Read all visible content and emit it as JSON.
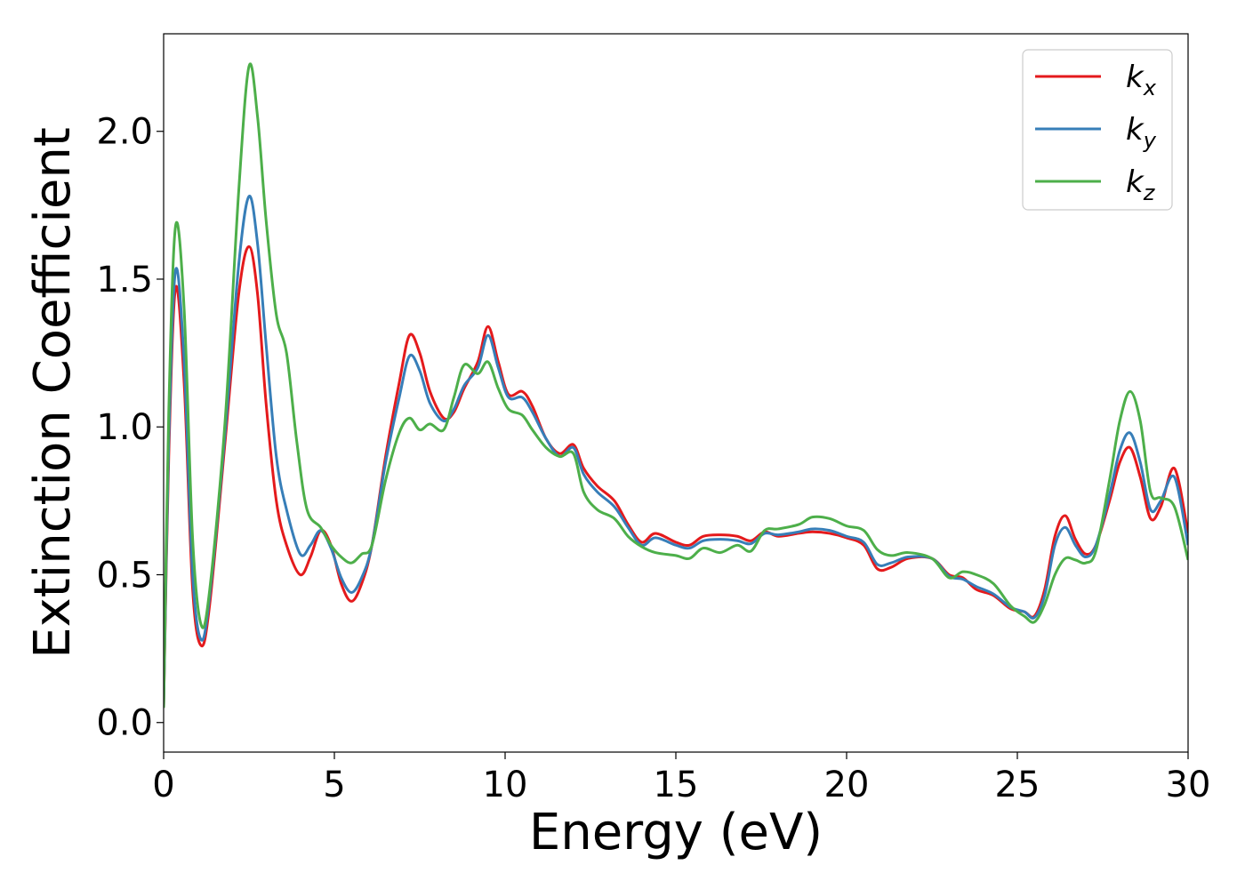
{
  "chart_data": {
    "type": "line",
    "title": "",
    "xlabel": "Energy (eV)",
    "ylabel": "Extinction Coefficient",
    "xlim": [
      0,
      30
    ],
    "ylim": [
      -0.1,
      2.33
    ],
    "x_ticks": [
      0,
      5,
      10,
      15,
      20,
      25,
      30
    ],
    "x_tick_labels": [
      "0",
      "5",
      "10",
      "15",
      "20",
      "25",
      "30"
    ],
    "y_ticks": [
      0.0,
      0.5,
      1.0,
      1.5,
      2.0
    ],
    "y_tick_labels": [
      "0.0",
      "0.5",
      "1.0",
      "1.5",
      "2.0"
    ],
    "grid": false,
    "legend_position": "top-right",
    "series": [
      {
        "name": "k_x",
        "legend_base": "k",
        "legend_sub": "x",
        "color": "#e41a1c",
        "points": [
          [
            0,
            0.05
          ],
          [
            0.15,
            0.9
          ],
          [
            0.35,
            1.47
          ],
          [
            0.6,
            1.15
          ],
          [
            0.85,
            0.45
          ],
          [
            1.1,
            0.26
          ],
          [
            1.35,
            0.4
          ],
          [
            1.8,
            0.95
          ],
          [
            2.2,
            1.45
          ],
          [
            2.5,
            1.61
          ],
          [
            2.75,
            1.45
          ],
          [
            3.0,
            1.08
          ],
          [
            3.3,
            0.75
          ],
          [
            3.6,
            0.6
          ],
          [
            4.0,
            0.5
          ],
          [
            4.3,
            0.56
          ],
          [
            4.6,
            0.65
          ],
          [
            4.9,
            0.6
          ],
          [
            5.2,
            0.47
          ],
          [
            5.5,
            0.41
          ],
          [
            5.8,
            0.47
          ],
          [
            6.1,
            0.6
          ],
          [
            6.5,
            0.9
          ],
          [
            6.9,
            1.15
          ],
          [
            7.2,
            1.31
          ],
          [
            7.5,
            1.25
          ],
          [
            7.8,
            1.12
          ],
          [
            8.2,
            1.03
          ],
          [
            8.5,
            1.05
          ],
          [
            8.8,
            1.13
          ],
          [
            9.2,
            1.22
          ],
          [
            9.5,
            1.34
          ],
          [
            9.8,
            1.22
          ],
          [
            10.1,
            1.11
          ],
          [
            10.5,
            1.12
          ],
          [
            10.8,
            1.07
          ],
          [
            11.2,
            0.96
          ],
          [
            11.6,
            0.91
          ],
          [
            12.0,
            0.94
          ],
          [
            12.3,
            0.86
          ],
          [
            12.7,
            0.8
          ],
          [
            13.2,
            0.75
          ],
          [
            13.6,
            0.67
          ],
          [
            14.0,
            0.61
          ],
          [
            14.4,
            0.64
          ],
          [
            15.0,
            0.61
          ],
          [
            15.4,
            0.6
          ],
          [
            15.8,
            0.63
          ],
          [
            16.3,
            0.635
          ],
          [
            16.8,
            0.63
          ],
          [
            17.2,
            0.615
          ],
          [
            17.6,
            0.645
          ],
          [
            18.0,
            0.63
          ],
          [
            18.6,
            0.64
          ],
          [
            19.0,
            0.645
          ],
          [
            19.5,
            0.64
          ],
          [
            20.0,
            0.625
          ],
          [
            20.5,
            0.6
          ],
          [
            20.9,
            0.52
          ],
          [
            21.3,
            0.525
          ],
          [
            21.8,
            0.555
          ],
          [
            22.5,
            0.555
          ],
          [
            23.0,
            0.5
          ],
          [
            23.4,
            0.49
          ],
          [
            23.8,
            0.45
          ],
          [
            24.3,
            0.43
          ],
          [
            24.8,
            0.385
          ],
          [
            25.2,
            0.375
          ],
          [
            25.5,
            0.36
          ],
          [
            25.8,
            0.45
          ],
          [
            26.1,
            0.63
          ],
          [
            26.4,
            0.7
          ],
          [
            26.7,
            0.62
          ],
          [
            27.0,
            0.57
          ],
          [
            27.3,
            0.6
          ],
          [
            27.7,
            0.75
          ],
          [
            28.0,
            0.88
          ],
          [
            28.3,
            0.93
          ],
          [
            28.6,
            0.83
          ],
          [
            28.9,
            0.69
          ],
          [
            29.2,
            0.73
          ],
          [
            29.6,
            0.86
          ],
          [
            30.0,
            0.64
          ]
        ]
      },
      {
        "name": "k_y",
        "legend_base": "k",
        "legend_sub": "y",
        "color": "#377eb8",
        "points": [
          [
            0,
            0.05
          ],
          [
            0.15,
            0.95
          ],
          [
            0.35,
            1.53
          ],
          [
            0.6,
            1.22
          ],
          [
            0.85,
            0.5
          ],
          [
            1.1,
            0.28
          ],
          [
            1.35,
            0.43
          ],
          [
            1.8,
            0.98
          ],
          [
            2.2,
            1.55
          ],
          [
            2.5,
            1.78
          ],
          [
            2.75,
            1.62
          ],
          [
            3.0,
            1.28
          ],
          [
            3.3,
            0.9
          ],
          [
            3.6,
            0.72
          ],
          [
            4.0,
            0.57
          ],
          [
            4.3,
            0.6
          ],
          [
            4.6,
            0.65
          ],
          [
            4.9,
            0.59
          ],
          [
            5.2,
            0.49
          ],
          [
            5.5,
            0.44
          ],
          [
            5.8,
            0.49
          ],
          [
            6.1,
            0.6
          ],
          [
            6.5,
            0.88
          ],
          [
            6.9,
            1.1
          ],
          [
            7.2,
            1.24
          ],
          [
            7.5,
            1.19
          ],
          [
            7.8,
            1.08
          ],
          [
            8.2,
            1.02
          ],
          [
            8.5,
            1.06
          ],
          [
            8.8,
            1.14
          ],
          [
            9.2,
            1.2
          ],
          [
            9.5,
            1.31
          ],
          [
            9.8,
            1.2
          ],
          [
            10.1,
            1.1
          ],
          [
            10.5,
            1.1
          ],
          [
            10.8,
            1.05
          ],
          [
            11.2,
            0.96
          ],
          [
            11.6,
            0.9
          ],
          [
            12.0,
            0.93
          ],
          [
            12.3,
            0.84
          ],
          [
            12.7,
            0.78
          ],
          [
            13.2,
            0.73
          ],
          [
            13.6,
            0.66
          ],
          [
            14.0,
            0.6
          ],
          [
            14.4,
            0.625
          ],
          [
            15.0,
            0.6
          ],
          [
            15.4,
            0.59
          ],
          [
            15.8,
            0.615
          ],
          [
            16.3,
            0.62
          ],
          [
            16.8,
            0.615
          ],
          [
            17.2,
            0.605
          ],
          [
            17.6,
            0.64
          ],
          [
            18.0,
            0.635
          ],
          [
            18.6,
            0.645
          ],
          [
            19.0,
            0.655
          ],
          [
            19.5,
            0.65
          ],
          [
            20.0,
            0.63
          ],
          [
            20.5,
            0.61
          ],
          [
            20.9,
            0.535
          ],
          [
            21.3,
            0.54
          ],
          [
            21.8,
            0.56
          ],
          [
            22.5,
            0.555
          ],
          [
            23.0,
            0.495
          ],
          [
            23.4,
            0.485
          ],
          [
            23.8,
            0.46
          ],
          [
            24.3,
            0.435
          ],
          [
            24.8,
            0.39
          ],
          [
            25.2,
            0.375
          ],
          [
            25.5,
            0.355
          ],
          [
            25.8,
            0.43
          ],
          [
            26.1,
            0.6
          ],
          [
            26.4,
            0.66
          ],
          [
            26.7,
            0.6
          ],
          [
            27.0,
            0.56
          ],
          [
            27.3,
            0.6
          ],
          [
            27.7,
            0.77
          ],
          [
            28.0,
            0.92
          ],
          [
            28.3,
            0.98
          ],
          [
            28.6,
            0.88
          ],
          [
            28.9,
            0.72
          ],
          [
            29.2,
            0.75
          ],
          [
            29.6,
            0.83
          ],
          [
            30.0,
            0.6
          ]
        ]
      },
      {
        "name": "k_z",
        "legend_base": "k",
        "legend_sub": "z",
        "color": "#4daf4a",
        "points": [
          [
            0,
            0.05
          ],
          [
            0.15,
            1.05
          ],
          [
            0.35,
            1.68
          ],
          [
            0.6,
            1.4
          ],
          [
            0.85,
            0.62
          ],
          [
            1.1,
            0.33
          ],
          [
            1.35,
            0.45
          ],
          [
            1.8,
            1.02
          ],
          [
            2.2,
            1.8
          ],
          [
            2.5,
            2.22
          ],
          [
            2.75,
            2.05
          ],
          [
            3.0,
            1.7
          ],
          [
            3.3,
            1.38
          ],
          [
            3.6,
            1.25
          ],
          [
            3.9,
            0.95
          ],
          [
            4.2,
            0.72
          ],
          [
            4.6,
            0.66
          ],
          [
            4.9,
            0.6
          ],
          [
            5.2,
            0.56
          ],
          [
            5.5,
            0.54
          ],
          [
            5.8,
            0.57
          ],
          [
            6.1,
            0.6
          ],
          [
            6.5,
            0.82
          ],
          [
            6.9,
            0.98
          ],
          [
            7.2,
            1.03
          ],
          [
            7.5,
            0.99
          ],
          [
            7.8,
            1.01
          ],
          [
            8.2,
            0.99
          ],
          [
            8.5,
            1.1
          ],
          [
            8.8,
            1.21
          ],
          [
            9.2,
            1.18
          ],
          [
            9.5,
            1.22
          ],
          [
            9.8,
            1.13
          ],
          [
            10.1,
            1.06
          ],
          [
            10.5,
            1.04
          ],
          [
            10.8,
            0.99
          ],
          [
            11.2,
            0.93
          ],
          [
            11.6,
            0.9
          ],
          [
            12.0,
            0.91
          ],
          [
            12.3,
            0.78
          ],
          [
            12.7,
            0.72
          ],
          [
            13.2,
            0.69
          ],
          [
            13.6,
            0.63
          ],
          [
            14.0,
            0.595
          ],
          [
            14.4,
            0.575
          ],
          [
            15.0,
            0.565
          ],
          [
            15.4,
            0.555
          ],
          [
            15.8,
            0.59
          ],
          [
            16.3,
            0.575
          ],
          [
            16.8,
            0.6
          ],
          [
            17.2,
            0.58
          ],
          [
            17.6,
            0.65
          ],
          [
            18.0,
            0.655
          ],
          [
            18.6,
            0.67
          ],
          [
            19.0,
            0.695
          ],
          [
            19.5,
            0.69
          ],
          [
            20.0,
            0.665
          ],
          [
            20.5,
            0.65
          ],
          [
            20.9,
            0.585
          ],
          [
            21.3,
            0.565
          ],
          [
            21.8,
            0.575
          ],
          [
            22.5,
            0.555
          ],
          [
            23.0,
            0.49
          ],
          [
            23.4,
            0.51
          ],
          [
            23.8,
            0.5
          ],
          [
            24.3,
            0.47
          ],
          [
            24.8,
            0.395
          ],
          [
            25.2,
            0.36
          ],
          [
            25.5,
            0.34
          ],
          [
            25.8,
            0.4
          ],
          [
            26.1,
            0.5
          ],
          [
            26.4,
            0.555
          ],
          [
            26.7,
            0.55
          ],
          [
            27.0,
            0.54
          ],
          [
            27.3,
            0.58
          ],
          [
            27.7,
            0.82
          ],
          [
            28.0,
            1.02
          ],
          [
            28.3,
            1.12
          ],
          [
            28.6,
            1.02
          ],
          [
            28.9,
            0.78
          ],
          [
            29.2,
            0.76
          ],
          [
            29.6,
            0.73
          ],
          [
            30.0,
            0.55
          ]
        ]
      }
    ]
  }
}
